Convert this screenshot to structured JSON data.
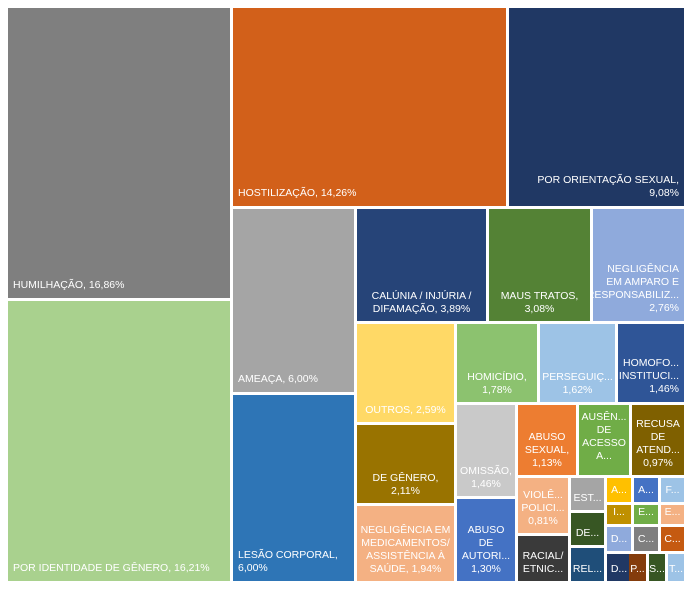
{
  "chart_data": {
    "type": "treemap",
    "title": "",
    "items": [
      {
        "name": "HUMILHAÇÃO",
        "value": 16.86,
        "value_label": "16,86%",
        "color": "#7f7f7f"
      },
      {
        "name": "POR IDENTIDADE DE GÊNERO",
        "value": 16.21,
        "value_label": "16,21%",
        "color": "#a9d18e"
      },
      {
        "name": "HOSTILIZAÇÃO",
        "value": 14.26,
        "value_label": "14,26%",
        "color": "#d2601a"
      },
      {
        "name": "POR ORIENTAÇÃO SEXUAL",
        "value": 9.08,
        "value_label": "9,08%",
        "color": "#203864"
      },
      {
        "name": "AMEAÇA",
        "value": 6.0,
        "value_label": "6,00%",
        "color": "#a5a5a5"
      },
      {
        "name": "LESÃO CORPORAL",
        "value": 6.0,
        "value_label": "6,00%",
        "color": "#2e75b6"
      },
      {
        "name": "CALÚNIA / INJÚRIA / DIFAMAÇÃO",
        "value": 3.89,
        "value_label": "3,89%",
        "color": "#264478"
      },
      {
        "name": "MAUS TRATOS",
        "value": 3.08,
        "value_label": "3,08%",
        "color": "#548235"
      },
      {
        "name": "NEGLIGÊNCIA EM AMPARO E RESPONSABILIZ...",
        "value": 2.76,
        "value_label": "2,76%",
        "color": "#8faadc"
      },
      {
        "name": "OUTROS",
        "value": 2.59,
        "value_label": "2,59%",
        "color": "#ffd966"
      },
      {
        "name": "HOMICÍDIO",
        "value": 1.78,
        "value_label": "1,78%",
        "color": "#8cc26f"
      },
      {
        "name": "PERSEGUIÇ...",
        "value": 1.62,
        "value_label": "1,62%",
        "color": "#9dc3e6"
      },
      {
        "name": "HOMOFO... INSTITUCI...",
        "value": 1.46,
        "value_label": "1,46%",
        "color": "#2f5597"
      },
      {
        "name": "DE GÊNERO",
        "value": 2.11,
        "value_label": "2,11%",
        "color": "#997300"
      },
      {
        "name": "NEGLIGÊNCIA EM MEDICAMENTOS/ ASSISTÊNCIA À SAÚDE",
        "value": 1.94,
        "value_label": "1,94%",
        "color": "#f4b183"
      },
      {
        "name": "OMISSÃO",
        "value": 1.46,
        "value_label": "1,46%",
        "color": "#c9c9c9"
      },
      {
        "name": "ABUSO DE AUTORI...",
        "value": 1.3,
        "value_label": "1,30%",
        "color": "#4472c4"
      },
      {
        "name": "ABUSO SEXUAL",
        "value": 1.13,
        "value_label": "1,13%",
        "color": "#ed7d31"
      },
      {
        "name": "AUSÊN... DE ACESSO A...",
        "value": 1.05,
        "value_label": "",
        "color": "#70ad47"
      },
      {
        "name": "RECUSA DE ATEND...",
        "value": 0.97,
        "value_label": "0,97%",
        "color": "#7f6000"
      },
      {
        "name": "VIOLÊ... POLICI...",
        "value": 0.81,
        "value_label": "0,81%",
        "color": "#f4b183"
      },
      {
        "name": "RACIAL/ ETNIC...",
        "value": 0.65,
        "value_label": "",
        "color": "#3a3a3a"
      },
      {
        "name": "EST...",
        "value": 0.35,
        "value_label": "",
        "color": "#a5a5a5"
      },
      {
        "name": "DE...",
        "value": 0.33,
        "value_label": "",
        "color": "#375623"
      },
      {
        "name": "REL...",
        "value": 0.33,
        "value_label": "",
        "color": "#1f4e79"
      },
      {
        "name": "A...",
        "value": 0.16,
        "value_label": "",
        "color": "#ffc000"
      },
      {
        "name": "A...",
        "value": 0.16,
        "value_label": "",
        "color": "#4472c4"
      },
      {
        "name": "F...",
        "value": 0.16,
        "value_label": "",
        "color": "#9dc3e6"
      },
      {
        "name": "I...",
        "value": 0.16,
        "value_label": "",
        "color": "#bf9000"
      },
      {
        "name": "E...",
        "value": 0.16,
        "value_label": "",
        "color": "#70ad47"
      },
      {
        "name": "E...",
        "value": 0.16,
        "value_label": "",
        "color": "#f4b183"
      },
      {
        "name": "D...",
        "value": 0.16,
        "value_label": "",
        "color": "#8faadc"
      },
      {
        "name": "C...",
        "value": 0.16,
        "value_label": "",
        "color": "#7f7f7f"
      },
      {
        "name": "C...",
        "value": 0.16,
        "value_label": "",
        "color": "#c55a11"
      },
      {
        "name": "D...",
        "value": 0.16,
        "value_label": "",
        "color": "#203864"
      },
      {
        "name": "P...",
        "value": 0.16,
        "value_label": "",
        "color": "#843c0c"
      },
      {
        "name": "S...",
        "value": 0.16,
        "value_label": "",
        "color": "#375623"
      },
      {
        "name": "T...",
        "value": 0.16,
        "value_label": "",
        "color": "#9dc3e6"
      }
    ]
  }
}
